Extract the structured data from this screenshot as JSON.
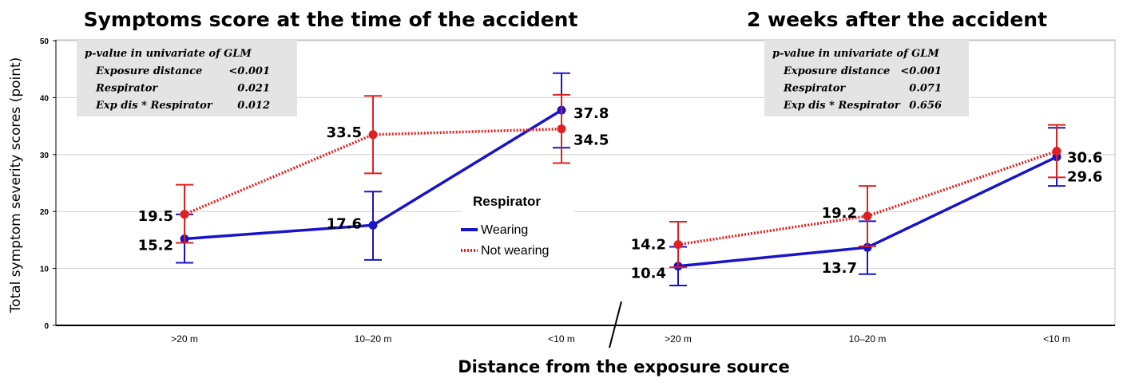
{
  "chart_data": {
    "type": "line",
    "ylabel": "Total symptom severity scores (point)",
    "xlabel": "Distance from the exposure source",
    "ylim": [
      0,
      50
    ],
    "yticks": [
      "0",
      "10",
      "20",
      "30",
      "40",
      "50"
    ],
    "legend": {
      "title": "Respirator",
      "items": [
        {
          "name": "Wearing",
          "color": "#1a14c8",
          "style": "solid"
        },
        {
          "name": "Not wearing",
          "color": "#e02020",
          "style": "dotted"
        }
      ]
    },
    "panels": [
      {
        "title": "Symptoms score at the time of the accident",
        "categories": [
          ">20 m",
          "10–20 m",
          "<10 m"
        ],
        "series": [
          {
            "name": "Wearing",
            "values": [
              15.2,
              17.6,
              37.8
            ],
            "err_low": [
              11.0,
              11.5,
              31.2
            ],
            "err_high": [
              19.5,
              23.5,
              44.3
            ],
            "labels": [
              "15.2",
              "17.6",
              "37.8"
            ]
          },
          {
            "name": "Not wearing",
            "values": [
              19.5,
              33.5,
              34.5
            ],
            "err_low": [
              14.5,
              26.7,
              28.5
            ],
            "err_high": [
              24.7,
              40.3,
              40.5
            ],
            "labels": [
              "19.5",
              "33.5",
              "34.5"
            ]
          }
        ],
        "stats": {
          "heading": "p-value in univariate of GLM",
          "rows": [
            {
              "label": "Exposure distance",
              "value": "<0.001"
            },
            {
              "label": "Respirator",
              "value": "0.021"
            },
            {
              "label": "Exp dis * Respirator",
              "value": "0.012"
            }
          ]
        }
      },
      {
        "title": "2 weeks after the accident",
        "categories": [
          ">20 m",
          "10–20 m",
          "<10 m"
        ],
        "series": [
          {
            "name": "Wearing",
            "values": [
              10.4,
              13.7,
              29.6
            ],
            "err_low": [
              7.0,
              9.0,
              24.5
            ],
            "err_high": [
              13.8,
              18.3,
              34.7
            ],
            "labels": [
              "10.4",
              "13.7",
              "29.6"
            ]
          },
          {
            "name": "Not wearing",
            "values": [
              14.2,
              19.2,
              30.6
            ],
            "err_low": [
              10.2,
              13.9,
              26.0
            ],
            "err_high": [
              18.2,
              24.5,
              35.2
            ],
            "labels": [
              "14.2",
              "19.2",
              "30.6"
            ]
          }
        ],
        "stats": {
          "heading": "p-value in univariate of GLM",
          "rows": [
            {
              "label": "Exposure distance",
              "value": "<0.001"
            },
            {
              "label": "Respirator",
              "value": "0.071"
            },
            {
              "label": "Exp dis * Respirator",
              "value": "0.656"
            }
          ]
        }
      }
    ]
  }
}
